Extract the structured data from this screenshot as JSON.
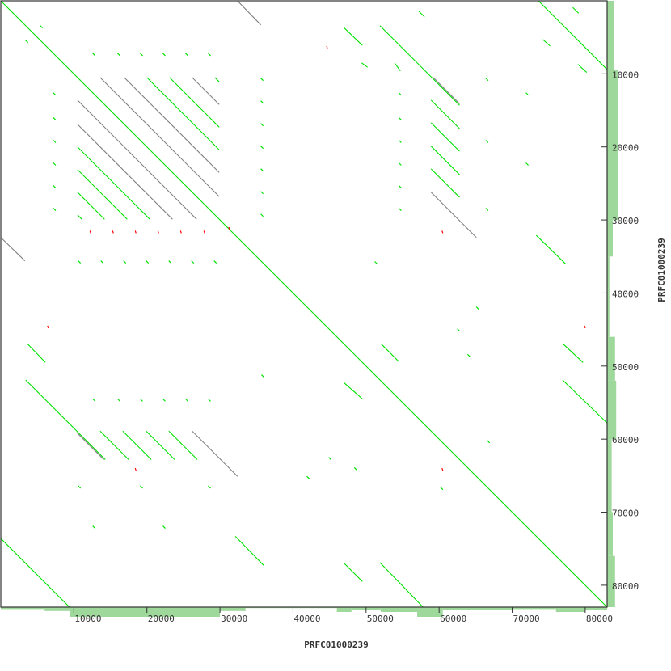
{
  "chart_data": {
    "type": "scatter",
    "subtype": "dot-plot",
    "xlabel": "PRFC01000239",
    "ylabel": "PRFC01000239",
    "xlim": [
      0,
      83000
    ],
    "ylim": [
      0,
      83000
    ],
    "y_inverted": true,
    "grid": false,
    "xticks": [
      10000,
      20000,
      30000,
      40000,
      50000,
      60000,
      70000,
      80000
    ],
    "yticks": [
      10000,
      20000,
      30000,
      40000,
      50000,
      60000,
      70000,
      80000
    ],
    "colors": {
      "forward": "#00e000",
      "reverse": "#808080",
      "other": "#ff0000",
      "coverage": "#9ed89a",
      "frame": "#333333"
    },
    "segments": [
      [
        0,
        0,
        83000,
        83000,
        "forward"
      ],
      [
        32400,
        0,
        35600,
        3300,
        "reverse"
      ],
      [
        0,
        32400,
        3300,
        35600,
        "reverse"
      ],
      [
        13600,
        10500,
        29900,
        26800,
        "reverse"
      ],
      [
        16900,
        10500,
        29900,
        23500,
        "reverse"
      ],
      [
        20000,
        10500,
        29900,
        20400,
        "forward"
      ],
      [
        23100,
        10500,
        29900,
        17300,
        "forward"
      ],
      [
        26200,
        10500,
        29900,
        14200,
        "reverse"
      ],
      [
        29300,
        10500,
        29900,
        11100,
        "forward"
      ],
      [
        10500,
        13600,
        26800,
        29900,
        "reverse"
      ],
      [
        10500,
        16900,
        23500,
        29900,
        "reverse"
      ],
      [
        10500,
        20000,
        20400,
        29900,
        "forward"
      ],
      [
        10500,
        23100,
        17300,
        29900,
        "forward"
      ],
      [
        10500,
        26200,
        14200,
        29900,
        "forward"
      ],
      [
        10500,
        29300,
        11100,
        29900,
        "forward"
      ],
      [
        47000,
        3700,
        49500,
        6100,
        "forward"
      ],
      [
        51900,
        3400,
        62800,
        14300,
        "forward"
      ],
      [
        59200,
        10500,
        62800,
        14100,
        "reverse"
      ],
      [
        58900,
        13600,
        62800,
        17500,
        "forward"
      ],
      [
        58900,
        16700,
        62800,
        20600,
        "forward"
      ],
      [
        58900,
        19900,
        62800,
        23800,
        "forward"
      ],
      [
        58900,
        23000,
        62800,
        26900,
        "forward"
      ],
      [
        58900,
        26200,
        65100,
        32400,
        "reverse"
      ],
      [
        73600,
        0,
        83000,
        9400,
        "forward"
      ],
      [
        73300,
        32100,
        77300,
        36000,
        "forward"
      ],
      [
        52100,
        47000,
        54500,
        49400,
        "forward"
      ],
      [
        47000,
        52300,
        49500,
        54500,
        "forward"
      ],
      [
        77000,
        47000,
        79700,
        49500,
        "forward"
      ],
      [
        76900,
        51900,
        83000,
        57800,
        "forward"
      ],
      [
        47000,
        77000,
        49500,
        79500,
        "forward"
      ],
      [
        51900,
        76900,
        57800,
        83000,
        "forward"
      ],
      [
        3700,
        47000,
        6100,
        49500,
        "forward"
      ],
      [
        3400,
        51900,
        14300,
        62800,
        "forward"
      ],
      [
        10500,
        59200,
        14100,
        62800,
        "reverse"
      ],
      [
        13600,
        58900,
        17500,
        62800,
        "forward"
      ],
      [
        16700,
        58900,
        20600,
        62800,
        "forward"
      ],
      [
        19900,
        58900,
        23800,
        62800,
        "forward"
      ],
      [
        23000,
        58900,
        26900,
        62800,
        "forward"
      ],
      [
        26200,
        58900,
        32400,
        65100,
        "reverse"
      ],
      [
        0,
        73600,
        9400,
        83000,
        "forward"
      ],
      [
        32100,
        73300,
        36000,
        77300,
        "forward"
      ],
      [
        57200,
        1400,
        58000,
        2200,
        "forward"
      ],
      [
        78300,
        900,
        79100,
        1700,
        "forward"
      ],
      [
        74200,
        5300,
        75200,
        6200,
        "forward"
      ],
      [
        79000,
        8700,
        80200,
        9800,
        "forward"
      ],
      [
        53900,
        8500,
        54700,
        9600,
        "forward"
      ],
      [
        49400,
        8500,
        50200,
        9100,
        "forward"
      ]
    ],
    "red_marks": [
      [
        12200,
        31700
      ],
      [
        15300,
        31700
      ],
      [
        18400,
        31700
      ],
      [
        21500,
        31700
      ],
      [
        24600,
        31700
      ],
      [
        27800,
        31700
      ],
      [
        31200,
        31200
      ],
      [
        60400,
        31700
      ],
      [
        44600,
        6400
      ],
      [
        18400,
        64200
      ],
      [
        60400,
        64200
      ],
      [
        79900,
        44700
      ],
      [
        6400,
        44700
      ]
    ],
    "dots": [
      [
        12700,
        7300
      ],
      [
        16100,
        7300
      ],
      [
        19200,
        7300
      ],
      [
        22300,
        7300
      ],
      [
        25400,
        7300
      ],
      [
        28500,
        7300
      ],
      [
        10700,
        35700
      ],
      [
        13800,
        35700
      ],
      [
        16900,
        35700
      ],
      [
        20000,
        35700
      ],
      [
        23100,
        35700
      ],
      [
        26200,
        35700
      ],
      [
        29300,
        35700
      ],
      [
        7300,
        12700
      ],
      [
        7300,
        16100
      ],
      [
        7300,
        19200
      ],
      [
        7300,
        22300
      ],
      [
        7300,
        25400
      ],
      [
        7300,
        28500
      ],
      [
        35700,
        10700
      ],
      [
        35700,
        13800
      ],
      [
        35700,
        16900
      ],
      [
        35700,
        20000
      ],
      [
        35700,
        23100
      ],
      [
        35700,
        26200
      ],
      [
        35700,
        29300
      ],
      [
        54600,
        12700
      ],
      [
        54600,
        16100
      ],
      [
        54600,
        19200
      ],
      [
        54600,
        22300
      ],
      [
        54600,
        25400
      ],
      [
        54600,
        28500
      ],
      [
        66500,
        10700
      ],
      [
        66500,
        19200
      ],
      [
        66500,
        28500
      ],
      [
        72000,
        12700
      ],
      [
        72000,
        22300
      ],
      [
        12700,
        54600
      ],
      [
        16100,
        54600
      ],
      [
        19200,
        54600
      ],
      [
        22300,
        54600
      ],
      [
        25400,
        54600
      ],
      [
        28500,
        54600
      ],
      [
        10700,
        66500
      ],
      [
        19200,
        66500
      ],
      [
        28500,
        66500
      ],
      [
        12700,
        72000
      ],
      [
        22300,
        72000
      ],
      [
        5500,
        3500
      ],
      [
        3500,
        5500
      ],
      [
        51300,
        35800
      ],
      [
        35800,
        51300
      ],
      [
        62600,
        45000
      ],
      [
        45000,
        62600
      ],
      [
        66700,
        60300
      ],
      [
        60300,
        66700
      ],
      [
        42000,
        65200
      ],
      [
        65200,
        42000
      ],
      [
        48500,
        64000
      ],
      [
        64000,
        48500
      ]
    ],
    "coverage_x": [
      [
        0,
        6000,
        0.2
      ],
      [
        6000,
        9500,
        0.4
      ],
      [
        9500,
        30000,
        1.0
      ],
      [
        30000,
        33500,
        0.4
      ],
      [
        33500,
        46000,
        0.1
      ],
      [
        46000,
        48000,
        0.5
      ],
      [
        48000,
        52000,
        0.3
      ],
      [
        52000,
        57000,
        0.5
      ],
      [
        57000,
        60500,
        1.0
      ],
      [
        60500,
        70000,
        0.3
      ],
      [
        70000,
        76000,
        0.2
      ],
      [
        76000,
        80000,
        0.5
      ],
      [
        80000,
        83000,
        0.3
      ]
    ],
    "coverage_y": [
      [
        0,
        9500,
        0.6
      ],
      [
        9500,
        30000,
        1.0
      ],
      [
        30000,
        35000,
        0.5
      ],
      [
        35000,
        46000,
        0.2
      ],
      [
        46000,
        52000,
        0.7
      ],
      [
        52000,
        60000,
        0.8
      ],
      [
        60000,
        70000,
        0.4
      ],
      [
        70000,
        76000,
        0.5
      ],
      [
        76000,
        83000,
        0.7
      ]
    ]
  }
}
